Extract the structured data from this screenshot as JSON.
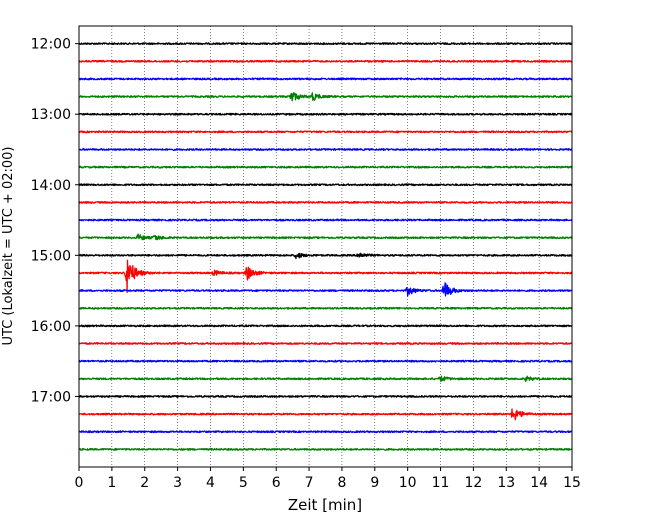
{
  "chart_data": {
    "type": "line",
    "title": "",
    "xlabel": "Zeit  [min]",
    "ylabel": "UTC (Lokalzeit = UTC + 02:00)",
    "xlim": [
      0,
      15
    ],
    "x_ticks": [
      0,
      1,
      2,
      3,
      4,
      5,
      6,
      7,
      8,
      9,
      10,
      11,
      12,
      13,
      14,
      15
    ],
    "y_range_utc": [
      "11:45",
      "18:00"
    ],
    "y_tick_labels": [
      "12:00",
      "13:00",
      "14:00",
      "15:00",
      "16:00",
      "17:00"
    ],
    "y_ticks_utc": [
      "12:00",
      "13:00",
      "14:00",
      "15:00",
      "16:00",
      "17:00"
    ],
    "y_axis_inverted": true,
    "x_grid": "dotted vertical lines at every minute",
    "legend": "none",
    "trace_colors_cycle": [
      "#000000",
      "#ff0000",
      "#0000ff",
      "#008000"
    ],
    "traces_note": "one 15-minute seismogram trace per row from 12:00 to 17:45 UTC; bursts give approximate event positions in minutes",
    "series": [
      {
        "start_utc": "12:00",
        "color": "#000000",
        "bursts": []
      },
      {
        "start_utc": "12:15",
        "color": "#ff0000",
        "bursts": []
      },
      {
        "start_utc": "12:30",
        "color": "#0000ff",
        "bursts": []
      },
      {
        "start_utc": "12:45",
        "color": "#008000",
        "bursts": [
          {
            "t": 6.45,
            "amp": 0.7
          },
          {
            "t": 7.1,
            "amp": 0.45
          }
        ]
      },
      {
        "start_utc": "13:00",
        "color": "#000000",
        "bursts": []
      },
      {
        "start_utc": "13:15",
        "color": "#ff0000",
        "bursts": []
      },
      {
        "start_utc": "13:30",
        "color": "#0000ff",
        "bursts": []
      },
      {
        "start_utc": "13:45",
        "color": "#008000",
        "bursts": []
      },
      {
        "start_utc": "14:00",
        "color": "#000000",
        "bursts": []
      },
      {
        "start_utc": "14:15",
        "color": "#ff0000",
        "bursts": []
      },
      {
        "start_utc": "14:30",
        "color": "#0000ff",
        "bursts": []
      },
      {
        "start_utc": "14:45",
        "color": "#008000",
        "bursts": [
          {
            "t": 1.8,
            "amp": 0.35
          },
          {
            "t": 2.3,
            "amp": 0.3
          }
        ]
      },
      {
        "start_utc": "15:00",
        "color": "#000000",
        "bursts": [
          {
            "t": 6.6,
            "amp": 0.35
          },
          {
            "t": 8.5,
            "amp": 0.35
          }
        ]
      },
      {
        "start_utc": "15:15",
        "color": "#ff0000",
        "bursts": [
          {
            "t": 1.45,
            "amp": 2.3
          },
          {
            "t": 4.1,
            "amp": 0.3
          },
          {
            "t": 5.1,
            "amp": 0.9
          }
        ]
      },
      {
        "start_utc": "15:30",
        "color": "#0000ff",
        "bursts": [
          {
            "t": 10.0,
            "amp": 0.55
          },
          {
            "t": 11.1,
            "amp": 1.1
          }
        ]
      },
      {
        "start_utc": "15:45",
        "color": "#008000",
        "bursts": []
      },
      {
        "start_utc": "16:00",
        "color": "#000000",
        "bursts": []
      },
      {
        "start_utc": "16:15",
        "color": "#ff0000",
        "bursts": []
      },
      {
        "start_utc": "16:30",
        "color": "#0000ff",
        "bursts": []
      },
      {
        "start_utc": "16:45",
        "color": "#008000",
        "bursts": [
          {
            "t": 11.0,
            "amp": 0.3
          },
          {
            "t": 13.6,
            "amp": 0.25
          }
        ]
      },
      {
        "start_utc": "17:00",
        "color": "#000000",
        "bursts": []
      },
      {
        "start_utc": "17:15",
        "color": "#ff0000",
        "bursts": [
          {
            "t": 13.2,
            "amp": 0.9
          }
        ]
      },
      {
        "start_utc": "17:30",
        "color": "#0000ff",
        "bursts": []
      },
      {
        "start_utc": "17:45",
        "color": "#008000",
        "bursts": []
      }
    ]
  }
}
